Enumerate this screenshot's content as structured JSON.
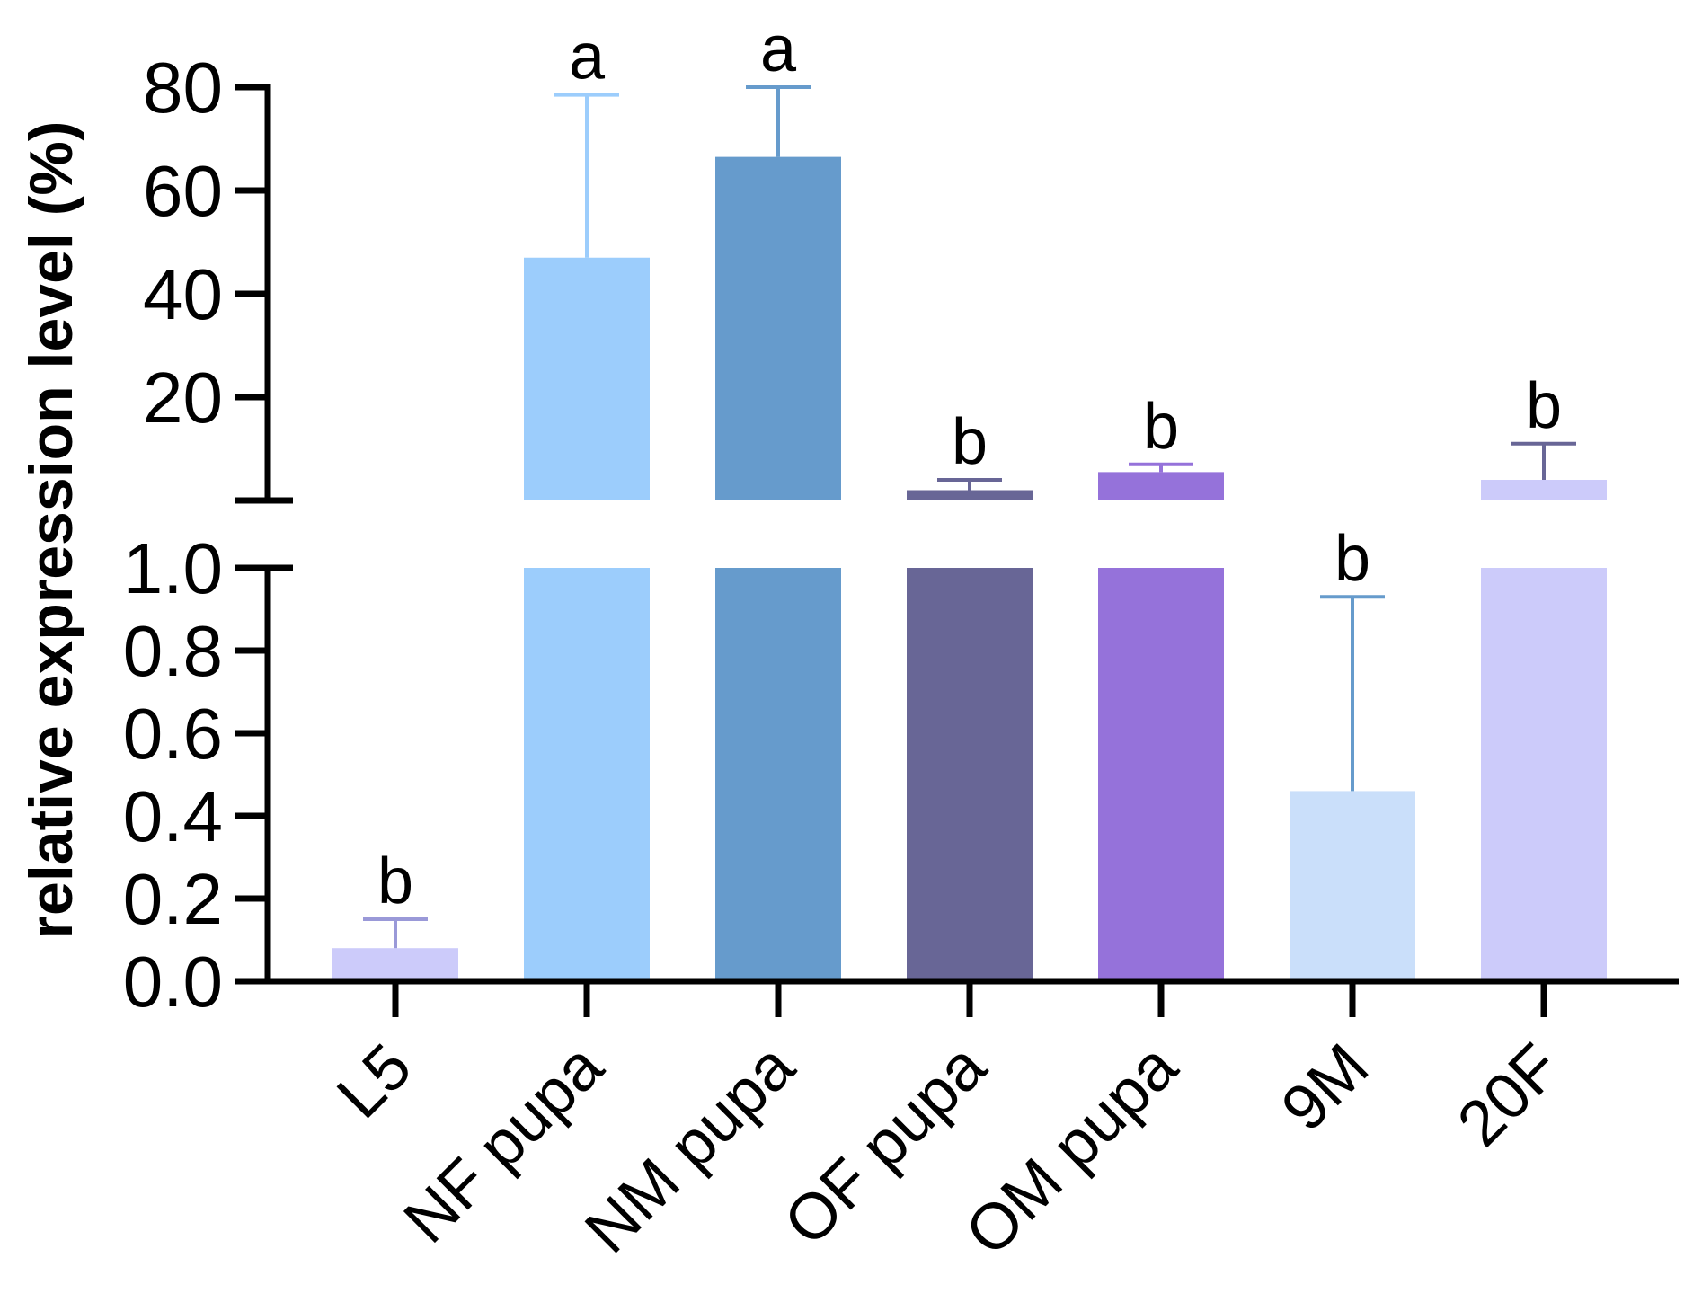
{
  "chart_data": {
    "type": "bar",
    "title": "",
    "xlabel": "",
    "ylabel": "relative expression level (%)",
    "axis_break": true,
    "ylim_lower": [
      0,
      1.0
    ],
    "ylim_upper": [
      0,
      80
    ],
    "lower_ticks": [
      "0.0",
      "0.2",
      "0.4",
      "0.6",
      "0.8",
      "1.0"
    ],
    "upper_ticks": [
      "20",
      "40",
      "60",
      "80"
    ],
    "categories": [
      "L5",
      "NF pupa",
      "NM pupa",
      "OF pupa",
      "OM pupa",
      "9M",
      "20F"
    ],
    "values": [
      0.08,
      47,
      66.5,
      2,
      5.5,
      0.46,
      4
    ],
    "errors": [
      0.07,
      31.5,
      13.5,
      2,
      1.5,
      0.47,
      7
    ],
    "significance": [
      "b",
      "a",
      "a",
      "b",
      "b",
      "b",
      "b"
    ],
    "colors": [
      "#cccbfa",
      "#9ccdfc",
      "#669bcc",
      "#686696",
      "#9572da",
      "#cadffa",
      "#cccbfa"
    ],
    "axis_color": "#000000"
  }
}
